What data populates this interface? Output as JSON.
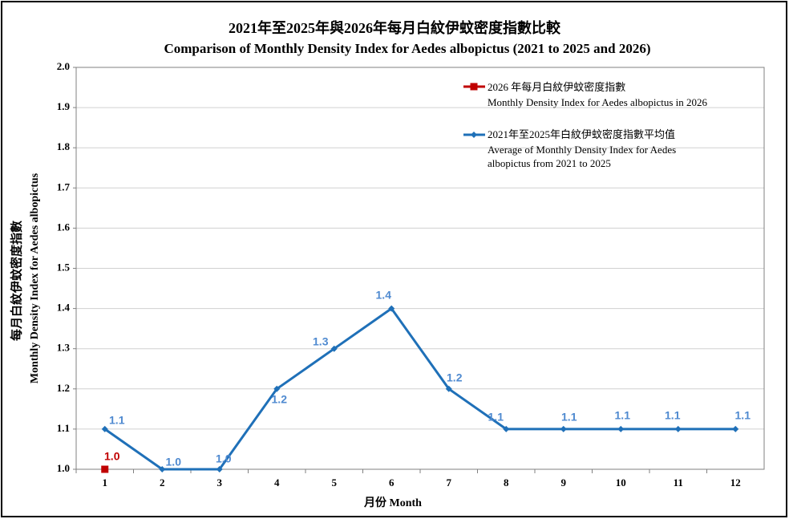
{
  "chart_data": {
    "type": "line",
    "title": "2021年至2025年與2026年每月白紋伊蚊密度指數比較",
    "subtitle": "Comparison  of Monthly  Density Index  for Aedes albopictus (2021 to 2025 and 2026)",
    "y_label": "每月白紋伊蚊密度指數",
    "y_label_en": "Monthly Density Index for Aedes albopictus",
    "x_label": "月份 Month",
    "categories": [
      "1",
      "2",
      "3",
      "4",
      "5",
      "6",
      "7",
      "8",
      "9",
      "10",
      "11",
      "12"
    ],
    "ylim": [
      1.0,
      2.0
    ],
    "yticks": [
      {
        "value": 1.0,
        "label": "1.0"
      },
      1.1,
      1.2,
      1.3,
      1.4,
      1.5,
      1.6,
      1.7,
      1.8,
      1.9,
      {
        "value": 2.0,
        "label": "2.0"
      }
    ],
    "grid": true,
    "legend": "upper right",
    "series": [
      {
        "name": "2026 年每月白紋伊蚊密度指數",
        "name_en": "Monthly Density Index for Aedes albopictus in 2026",
        "color": "#c00000",
        "marker": "square",
        "values": [
          1.0,
          null,
          null,
          null,
          null,
          null,
          null,
          null,
          null,
          null,
          null,
          null
        ],
        "value_labels": [
          "1.0",
          null,
          null,
          null,
          null,
          null,
          null,
          null,
          null,
          null,
          null,
          null
        ]
      },
      {
        "name": "2021年至2025年白紋伊蚊密度指數平均值",
        "name_en": "Average of Monthly Density Index for Aedes albopictus from 2021 to 2025",
        "color": "#1f70b8",
        "marker": "diamond",
        "values": [
          1.1,
          1.0,
          1.0,
          1.2,
          1.3,
          1.4,
          1.2,
          1.1,
          1.1,
          1.1,
          1.1,
          1.1
        ],
        "value_labels": [
          "1.1",
          "1.0",
          "1.0",
          "1.2",
          "1.3",
          "1.4",
          "1.2",
          "1.1",
          "1.1",
          "1.1",
          "1.1",
          "1.1"
        ]
      }
    ]
  }
}
